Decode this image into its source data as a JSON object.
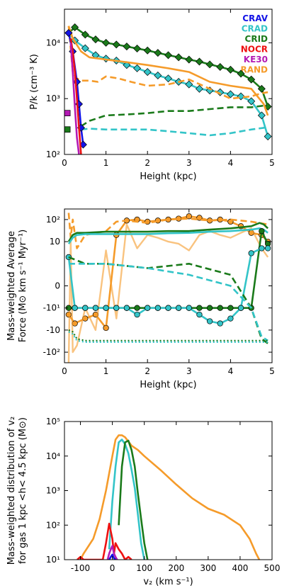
{
  "colors": {
    "CRAV": "#1414e6",
    "CRAD": "#33c4c8",
    "CRID": "#1a7a1a",
    "NOCR": "#ee1111",
    "KE30": "#b41ab4",
    "RAND": "#f59b2a"
  },
  "legend": [
    "CRAV",
    "CRAD",
    "CRID",
    "NOCR",
    "KE30",
    "RAND"
  ],
  "chart_data": [
    {
      "type": "line",
      "ylabel": "P/k (cm⁻³ K)",
      "xlabel": "Height (kpc)",
      "xlim": [
        0,
        5
      ],
      "ylim": [
        100,
        40000
      ],
      "yscale": "log",
      "xticks": [
        "0",
        "1",
        "2",
        "3",
        "4",
        "5"
      ],
      "yticks": [
        "10²",
        "10³",
        "10⁴"
      ],
      "series": [
        {
          "name": "CRID",
          "color_key": "CRID",
          "style": "solid-diamond",
          "x": [
            0.1,
            0.25,
            0.5,
            0.75,
            1,
            1.25,
            1.5,
            1.75,
            2,
            2.25,
            2.5,
            2.75,
            3,
            3.25,
            3.5,
            3.75,
            4,
            4.25,
            4.5,
            4.75,
            4.9
          ],
          "y": [
            15000,
            19000,
            14000,
            11500,
            10000,
            9300,
            8600,
            7900,
            7300,
            6600,
            6000,
            5500,
            5000,
            4600,
            4100,
            3700,
            3300,
            2800,
            2200,
            1500,
            720
          ]
        },
        {
          "name": "CRAD",
          "color_key": "CRAD",
          "style": "solid-diamond",
          "x": [
            0.1,
            0.25,
            0.5,
            0.75,
            1,
            1.25,
            1.5,
            1.75,
            2,
            2.25,
            2.5,
            2.75,
            3,
            3.25,
            3.5,
            3.75,
            4,
            4.25,
            4.5,
            4.75,
            4.9
          ],
          "y": [
            15000,
            11000,
            8000,
            6000,
            5200,
            4800,
            4000,
            3500,
            3000,
            2600,
            2300,
            2000,
            1800,
            1500,
            1400,
            1300,
            1200,
            1100,
            900,
            500,
            210
          ]
        },
        {
          "name": "RAND",
          "color_key": "RAND",
          "style": "solid",
          "x": [
            0.1,
            0.2,
            0.4,
            0.6,
            1,
            1.5,
            2,
            2.5,
            3,
            3.5,
            4,
            4.5,
            4.8,
            4.9
          ],
          "y": [
            20000,
            12000,
            7000,
            5500,
            5000,
            4500,
            4000,
            3500,
            3000,
            2000,
            1700,
            1500,
            800,
            500
          ]
        },
        {
          "name": "RAND",
          "color_key": "RAND",
          "style": "dashed",
          "x": [
            0.1,
            0.2,
            0.3,
            0.4,
            0.6,
            0.8,
            1,
            1.3,
            1.6,
            2,
            2.5,
            3,
            3.5,
            4,
            4.5,
            4.75,
            4.9
          ],
          "y": [
            20000,
            3000,
            2300,
            2100,
            2100,
            2000,
            2500,
            2300,
            2000,
            1700,
            1800,
            2200,
            1500,
            1000,
            1100,
            1250,
            1300
          ]
        },
        {
          "name": "CRID",
          "color_key": "CRID",
          "style": "dashed",
          "x": [
            0.4,
            0.6,
            1,
            1.5,
            2,
            2.5,
            3,
            3.5,
            4,
            4.5,
            4.8,
            4.9
          ],
          "y": [
            320,
            400,
            500,
            520,
            550,
            600,
            600,
            650,
            700,
            700,
            750,
            800
          ]
        },
        {
          "name": "CRAD",
          "color_key": "CRAD",
          "style": "dashed",
          "x": [
            0.4,
            0.6,
            1,
            1.5,
            2,
            2.5,
            3,
            3.5,
            4,
            4.5,
            4.8,
            4.9
          ],
          "y": [
            280,
            290,
            280,
            280,
            280,
            260,
            240,
            220,
            240,
            280,
            300,
            320
          ]
        },
        {
          "name": "CRAV",
          "color_key": "CRAV",
          "style": "solid-diamond",
          "x": [
            0.1,
            0.2,
            0.3,
            0.35,
            0.4,
            0.45
          ],
          "y": [
            15000,
            7000,
            2000,
            800,
            300,
            150
          ]
        },
        {
          "name": "NOCR",
          "color_key": "NOCR",
          "style": "solid",
          "x": [
            0.15,
            0.2,
            0.25,
            0.3,
            0.35,
            0.4
          ],
          "y": [
            12000,
            7000,
            3000,
            1000,
            300,
            100
          ]
        },
        {
          "name": "KE30",
          "color_key": "KE30",
          "style": "solid",
          "x": [
            0.15,
            0.2,
            0.25,
            0.3,
            0.35
          ],
          "y": [
            10000,
            3000,
            700,
            200,
            100
          ]
        }
      ],
      "markers": [
        {
          "color_key": "KE30",
          "x": 0.07,
          "y": 550
        },
        {
          "color_key": "CRID",
          "x": 0.07,
          "y": 280
        }
      ]
    },
    {
      "type": "line",
      "ylabel": "Mass-weighted Average Force (M⊙ km s⁻¹ Myr⁻¹)",
      "ylabel_lines": [
        "Mass-weighted Average",
        "Force (M⊙ km s⁻¹ Myr⁻¹)"
      ],
      "xlabel": "Height (kpc)",
      "xlim": [
        0,
        5
      ],
      "ylim": [
        -300,
        300
      ],
      "yscale": "symlog",
      "xticks": [
        "0",
        "1",
        "2",
        "3",
        "4",
        "5"
      ],
      "yticks": [
        "10²",
        "10",
        "0",
        "-10¹",
        "-10",
        "-10²"
      ],
      "series": [
        {
          "name": "RAND",
          "color_key": "RAND",
          "style": "solid-circle",
          "x": [
            0.1,
            0.25,
            0.5,
            0.75,
            1,
            1.25,
            1.5,
            1.75,
            2,
            2.25,
            2.5,
            2.75,
            3,
            3.25,
            3.5,
            3.75,
            4,
            4.25,
            4.5,
            4.75,
            4.9
          ],
          "y": [
            -2,
            -5,
            -3,
            -2,
            -8,
            20,
            90,
            100,
            80,
            90,
            100,
            110,
            140,
            120,
            90,
            100,
            80,
            50,
            25,
            20,
            10
          ]
        },
        {
          "name": "RAND",
          "color_key": "RAND",
          "style": "dashed",
          "x": [
            0.1,
            0.15,
            0.2,
            0.3,
            0.5,
            1,
            1.25,
            1.5,
            2,
            2.5,
            3,
            3.5,
            4,
            4.5,
            4.9
          ],
          "y": [
            200,
            15,
            100,
            5,
            20,
            30,
            80,
            90,
            70,
            100,
            110,
            90,
            100,
            80,
            60
          ]
        },
        {
          "name": "RAND",
          "color_key": "RAND",
          "style": "faint",
          "x": [
            0.1,
            0.15,
            0.2,
            0.3,
            0.5,
            0.75,
            1,
            1.25,
            1.5,
            1.75,
            2,
            2.25,
            2.5,
            2.75,
            3,
            3.25,
            3.5,
            3.75,
            4,
            4.25,
            4.5,
            4.75,
            4.9
          ],
          "y": [
            -300,
            10,
            -100,
            -50,
            -1,
            -10,
            4,
            -3,
            60,
            5,
            20,
            15,
            10,
            8,
            4,
            20,
            30,
            20,
            15,
            25,
            40,
            5,
            2
          ]
        },
        {
          "name": "CRID",
          "color_key": "CRID",
          "style": "solid",
          "x": [
            0.1,
            0.2,
            0.3,
            0.5,
            1,
            1.5,
            2,
            2.5,
            3,
            3.5,
            4,
            4.5,
            4.7,
            4.8,
            4.9
          ],
          "y": [
            10,
            20,
            25,
            25,
            28,
            28,
            28,
            30,
            30,
            35,
            40,
            50,
            70,
            60,
            40
          ]
        },
        {
          "name": "CRAD",
          "color_key": "CRAD",
          "style": "solid",
          "x": [
            0.1,
            0.2,
            0.3,
            0.5,
            1,
            1.5,
            2,
            2.5,
            3,
            3.5,
            4,
            4.5,
            4.7,
            4.8,
            4.9
          ],
          "y": [
            8,
            15,
            20,
            22,
            22,
            22,
            22,
            24,
            25,
            28,
            30,
            35,
            40,
            35,
            25
          ]
        },
        {
          "name": "CRID",
          "color_key": "CRID",
          "style": "solid-circle",
          "x": [
            0.1,
            0.25,
            0.5,
            0.75,
            1,
            1.25,
            1.5,
            1.75,
            2,
            2.25,
            2.5,
            2.75,
            3,
            3.25,
            3.5,
            3.75,
            4,
            4.25,
            4.5,
            4.75,
            4.9
          ],
          "y": [
            -1,
            -1,
            -1,
            -1,
            -1,
            -1,
            -1,
            -1,
            -1,
            -1,
            -1,
            -1,
            -1,
            -1,
            -1,
            -1,
            -1,
            -1,
            -1,
            30,
            8
          ]
        },
        {
          "name": "CRAD",
          "color_key": "CRAD",
          "style": "solid-circle",
          "x": [
            0.1,
            0.25,
            0.5,
            0.75,
            1,
            1.25,
            1.5,
            1.75,
            2,
            2.25,
            2.5,
            2.75,
            3,
            3.25,
            3.5,
            3.75,
            4,
            4.25,
            4.5,
            4.75,
            4.9
          ],
          "y": [
            2,
            -1,
            -1,
            -1,
            -1,
            -1,
            -1,
            -2,
            -1,
            -1,
            -1,
            -1,
            -1,
            -2,
            -4,
            -5,
            -3,
            -1,
            3,
            5,
            5
          ]
        },
        {
          "name": "CRID",
          "color_key": "CRID",
          "style": "dashed",
          "x": [
            0.1,
            0.5,
            1,
            2,
            3,
            4,
            4.5,
            4.75,
            4.9
          ],
          "y": [
            2,
            1,
            1,
            0.8,
            1,
            0.5,
            -1,
            -25,
            -40
          ]
        },
        {
          "name": "CRAD",
          "color_key": "CRAD",
          "style": "dashed",
          "x": [
            0.1,
            0.5,
            1,
            2,
            3,
            4,
            4.5,
            4.75,
            4.9
          ],
          "y": [
            1,
            1,
            1,
            0.8,
            0.5,
            0,
            -1,
            -20,
            -30
          ]
        },
        {
          "name": "CRID",
          "color_key": "CRID",
          "style": "dotted",
          "x": [
            0.1,
            0.2,
            0.3,
            0.5,
            1,
            2,
            3,
            4,
            4.5,
            4.8,
            4.9
          ],
          "y": [
            -10,
            -12,
            -25,
            -30,
            -30,
            -30,
            -30,
            -30,
            -30,
            -30,
            -30
          ]
        },
        {
          "name": "CRAD",
          "color_key": "CRAD",
          "style": "dotted",
          "x": [
            0.1,
            0.2,
            0.3,
            0.5,
            1,
            2,
            3,
            4,
            4.5,
            4.8,
            4.9
          ],
          "y": [
            -12,
            -15,
            -30,
            -35,
            -35,
            -35,
            -35,
            -35,
            -35,
            -35,
            -35
          ]
        }
      ]
    },
    {
      "type": "line",
      "ylabel": "Mass-weighted distribution of v_z for gas 1 kpc < h < 4.5 kpc (M⊙)",
      "ylabel_lines": [
        "Mass-weighted distribution of v₂",
        "for gas  1 kpc <h< 4.5 kpc (M⊙)"
      ],
      "xlabel": "v₂ (km s⁻¹)",
      "xlim": [
        -150,
        500
      ],
      "ylim": [
        10,
        100000
      ],
      "yscale": "log",
      "xticks": [
        "-100",
        "0",
        "100",
        "200",
        "300",
        "400",
        "500"
      ],
      "yticks": [
        "10¹",
        "10²",
        "10³",
        "10⁴",
        "10⁵"
      ],
      "series": [
        {
          "name": "RAND",
          "color_key": "RAND",
          "style": "solid",
          "x": [
            -100,
            -90,
            -60,
            -40,
            -20,
            0,
            10,
            20,
            30,
            40,
            60,
            80,
            100,
            150,
            200,
            250,
            300,
            350,
            400,
            430,
            450,
            460
          ],
          "y": [
            10,
            15,
            40,
            150,
            1000,
            10000,
            30000,
            40000,
            40000,
            35000,
            20000,
            15000,
            10000,
            4000,
            1500,
            600,
            300,
            200,
            100,
            40,
            15,
            10
          ]
        },
        {
          "name": "CRAD",
          "color_key": "CRAD",
          "style": "solid",
          "x": [
            -10,
            0,
            10,
            20,
            30,
            40,
            50,
            60,
            70,
            80,
            90,
            100
          ],
          "y": [
            20,
            500,
            5000,
            25000,
            30000,
            22000,
            12000,
            4000,
            1200,
            200,
            30,
            10
          ]
        },
        {
          "name": "CRID",
          "color_key": "CRID",
          "style": "solid",
          "x": [
            20,
            30,
            40,
            50,
            60,
            70,
            80,
            90,
            100,
            110
          ],
          "y": [
            100,
            5000,
            25000,
            28000,
            15000,
            5000,
            800,
            150,
            30,
            10
          ]
        },
        {
          "name": "NOCR",
          "color_key": "NOCR",
          "style": "solid",
          "x": [
            -110,
            -100,
            -90,
            -60,
            -30,
            -20,
            -10,
            0,
            5,
            10,
            20,
            30,
            40,
            50,
            60
          ],
          "y": [
            10,
            12,
            10,
            10,
            10,
            30,
            110,
            40,
            15,
            30,
            20,
            15,
            10,
            12,
            10
          ]
        },
        {
          "name": "KE30",
          "color_key": "KE30",
          "style": "solid",
          "x": [
            -15,
            -10,
            -5,
            0,
            5,
            10,
            15
          ],
          "y": [
            10,
            15,
            20,
            25,
            15,
            12,
            10
          ]
        },
        {
          "name": "CRAV",
          "color_key": "CRAV",
          "style": "solid",
          "x": [
            -10,
            -5,
            0,
            5,
            10
          ],
          "y": [
            10,
            12,
            14,
            11,
            10
          ]
        }
      ]
    }
  ]
}
